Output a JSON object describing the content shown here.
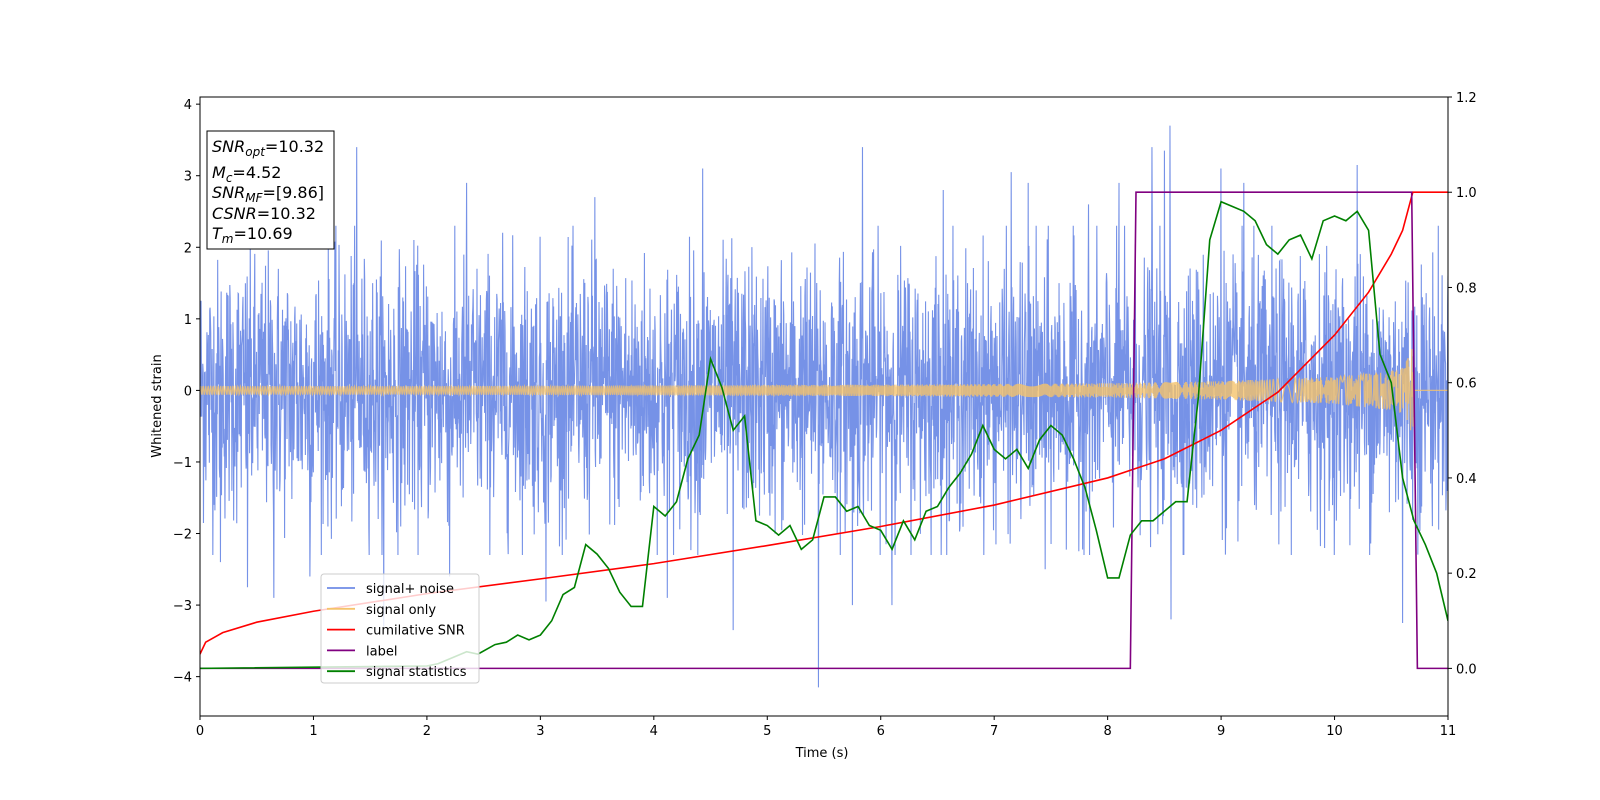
{
  "chart_data": {
    "type": "line",
    "xlabel": "Time (s)",
    "ylabel": "Whitened strain",
    "xlim": [
      0,
      11
    ],
    "ylim_left": [
      -4.55,
      4.1
    ],
    "ylim_right": [
      -0.1,
      1.2
    ],
    "x_ticks": [
      "0",
      "1",
      "2",
      "3",
      "4",
      "5",
      "6",
      "7",
      "8",
      "9",
      "10",
      "11"
    ],
    "y_left_ticks": [
      "−4",
      "−3",
      "−2",
      "−1",
      "0",
      "1",
      "2",
      "3",
      "4"
    ],
    "y_right_ticks": [
      "0.0",
      "0.2",
      "0.4",
      "0.6",
      "0.8",
      "1.0",
      "1.2"
    ],
    "annotation": {
      "snr_opt": {
        "var": "SNR",
        "sub": "opt",
        "value": "=10.32"
      },
      "mc": {
        "var": "M",
        "sub": "c",
        "value": "=4.52"
      },
      "snr_mf": {
        "var": "SNR",
        "sub": "MF",
        "value": "=[9.86]"
      },
      "csnr": {
        "var": "CSNR",
        "value": "=10.32"
      },
      "tm": {
        "var": "T",
        "sub": "m",
        "value": "=10.69"
      }
    },
    "legend": {
      "position": "lower-left",
      "entries": [
        {
          "label": "signal+ noise",
          "color": "#6f8ce6"
        },
        {
          "label": "signal only",
          "color": "#f5c36b"
        },
        {
          "label": "cumilative SNR",
          "color": "#ff0000"
        },
        {
          "label": "label",
          "color": "#800080"
        },
        {
          "label": "signal statistics",
          "color": "#008000"
        }
      ]
    },
    "series": [
      {
        "name": "signal+ noise",
        "axis": "left",
        "color": "#6f8ce6",
        "description": "noisy whitened strain, envelope about ±1.9 with spikes",
        "envelope_sigma": 0.9,
        "spikes": [
          [
            0.18,
            -2.4
          ],
          [
            0.42,
            -2.75
          ],
          [
            0.65,
            -2.9
          ],
          [
            0.97,
            -2.6
          ],
          [
            1.38,
            3.4
          ],
          [
            1.62,
            -3.3
          ],
          [
            2.2,
            -2.6
          ],
          [
            2.35,
            2.9
          ],
          [
            3.05,
            -2.95
          ],
          [
            3.48,
            2.7
          ],
          [
            4.12,
            -2.9
          ],
          [
            4.43,
            3.1
          ],
          [
            4.7,
            -3.35
          ],
          [
            5.45,
            -4.15
          ],
          [
            5.75,
            -3.0
          ],
          [
            5.84,
            3.4
          ],
          [
            6.1,
            -3.0
          ],
          [
            6.55,
            2.8
          ],
          [
            7.15,
            3.05
          ],
          [
            7.3,
            2.9
          ],
          [
            7.45,
            -2.5
          ],
          [
            7.83,
            2.6
          ],
          [
            8.1,
            2.9
          ],
          [
            8.39,
            3.4
          ],
          [
            8.5,
            3.35
          ],
          [
            8.55,
            3.7
          ],
          [
            8.56,
            -3.2
          ],
          [
            9.0,
            3.1
          ],
          [
            9.2,
            2.9
          ],
          [
            10.2,
            3.15
          ],
          [
            10.6,
            -3.25
          ]
        ]
      },
      {
        "name": "signal only",
        "axis": "left",
        "color": "#f5c36b",
        "description": "chirp with amplitude growing toward merger at Tm",
        "amplitude_points": [
          [
            0,
            0.06
          ],
          [
            2,
            0.06
          ],
          [
            4,
            0.07
          ],
          [
            6,
            0.08
          ],
          [
            8,
            0.1
          ],
          [
            9,
            0.13
          ],
          [
            10,
            0.19
          ],
          [
            10.5,
            0.27
          ],
          [
            10.62,
            0.35
          ],
          [
            10.68,
            0.6
          ],
          [
            10.69,
            0.7
          ],
          [
            10.7,
            0.0
          ],
          [
            11,
            0.0
          ]
        ]
      },
      {
        "name": "cumilative SNR",
        "axis": "right",
        "color": "#ff0000",
        "x": [
          0,
          0.05,
          0.2,
          0.5,
          1,
          2,
          3,
          4,
          5,
          6,
          7,
          8,
          8.5,
          9,
          9.5,
          10,
          10.3,
          10.5,
          10.6,
          10.69,
          10.75,
          11
        ],
        "y": [
          0.03,
          0.055,
          0.075,
          0.097,
          0.12,
          0.157,
          0.188,
          0.22,
          0.258,
          0.298,
          0.343,
          0.4,
          0.44,
          0.5,
          0.58,
          0.7,
          0.79,
          0.87,
          0.92,
          1.0,
          1.0,
          1.0
        ]
      },
      {
        "name": "label",
        "axis": "right",
        "color": "#800080",
        "x": [
          0,
          8.2,
          8.25,
          10.68,
          10.73,
          11
        ],
        "y": [
          0.0,
          0.0,
          1.0,
          1.0,
          0.0,
          0.0
        ]
      },
      {
        "name": "signal statistics",
        "axis": "right",
        "color": "#008000",
        "x": [
          0,
          2.0,
          2.1,
          2.2,
          2.3,
          2.35,
          2.45,
          2.6,
          2.7,
          2.8,
          2.9,
          3.0,
          3.1,
          3.2,
          3.3,
          3.4,
          3.5,
          3.6,
          3.7,
          3.8,
          3.9,
          4.0,
          4.1,
          4.2,
          4.3,
          4.4,
          4.5,
          4.6,
          4.7,
          4.8,
          4.9,
          5.0,
          5.1,
          5.2,
          5.3,
          5.4,
          5.5,
          5.6,
          5.7,
          5.8,
          5.9,
          6.0,
          6.1,
          6.2,
          6.3,
          6.4,
          6.5,
          6.6,
          6.7,
          6.8,
          6.9,
          7.0,
          7.1,
          7.2,
          7.3,
          7.4,
          7.5,
          7.6,
          7.7,
          7.8,
          7.9,
          8.0,
          8.1,
          8.2,
          8.3,
          8.4,
          8.5,
          8.6,
          8.7,
          8.8,
          8.9,
          9.0,
          9.1,
          9.2,
          9.3,
          9.4,
          9.5,
          9.6,
          9.7,
          9.8,
          9.9,
          10.0,
          10.1,
          10.2,
          10.3,
          10.4,
          10.5,
          10.6,
          10.7,
          10.8,
          10.9,
          11.0
        ],
        "y": [
          0.0,
          0.005,
          0.01,
          0.02,
          0.03,
          0.035,
          0.03,
          0.05,
          0.055,
          0.07,
          0.06,
          0.07,
          0.1,
          0.155,
          0.17,
          0.26,
          0.24,
          0.21,
          0.16,
          0.13,
          0.13,
          0.34,
          0.32,
          0.35,
          0.44,
          0.49,
          0.65,
          0.59,
          0.5,
          0.53,
          0.31,
          0.3,
          0.28,
          0.3,
          0.25,
          0.27,
          0.36,
          0.36,
          0.33,
          0.34,
          0.3,
          0.29,
          0.25,
          0.31,
          0.27,
          0.33,
          0.34,
          0.38,
          0.41,
          0.45,
          0.51,
          0.46,
          0.44,
          0.46,
          0.42,
          0.48,
          0.51,
          0.49,
          0.44,
          0.38,
          0.29,
          0.19,
          0.19,
          0.28,
          0.31,
          0.31,
          0.33,
          0.35,
          0.35,
          0.57,
          0.9,
          0.98,
          0.97,
          0.96,
          0.94,
          0.89,
          0.87,
          0.9,
          0.91,
          0.86,
          0.94,
          0.95,
          0.94,
          0.96,
          0.92,
          0.66,
          0.6,
          0.4,
          0.31,
          0.26,
          0.2,
          0.1
        ]
      }
    ]
  }
}
